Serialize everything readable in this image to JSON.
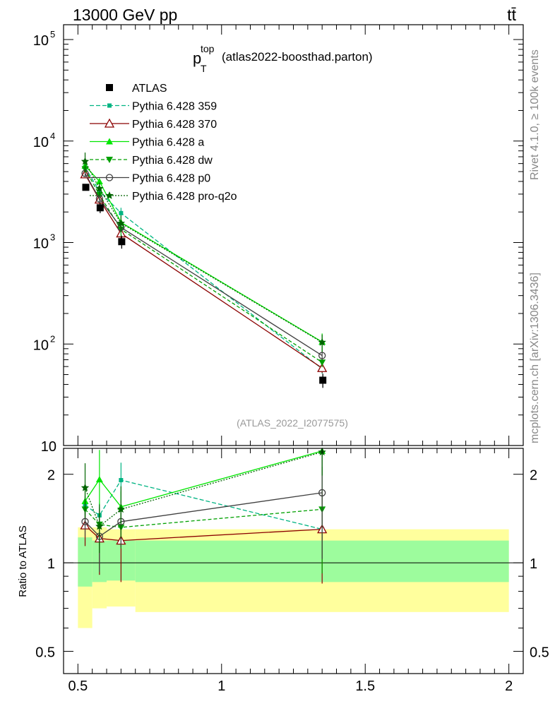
{
  "header": {
    "energy_label": "13000 GeV pp",
    "process_label": "tt̄",
    "analysis_id": "(ATLAS_2022_I2077575)",
    "side_label_top": "Rivet 4.1.0, ≥ 100k events",
    "side_label_bottom": "mcplots.cern.ch [arXiv:1306.3436]"
  },
  "title": {
    "main": "p",
    "sup": "top",
    "sub": "T",
    "suffix": "(atlas2022-boosthad.parton)"
  },
  "colors": {
    "ATLAS": "#000000",
    "p359": "#00b482",
    "p370": "#8b0000",
    "pa": "#00e600",
    "pdw": "#00a000",
    "pp0": "#404040",
    "pq2o": "#006400",
    "band_inner": "#9dfc9d",
    "band_outer": "#ffff9d"
  },
  "chart_data": [
    {
      "type": "line",
      "panel": "main",
      "xlim": [
        0.45,
        2.05
      ],
      "yscale": "log",
      "ylim": [
        10,
        140000
      ],
      "yticks": [
        {
          "value": 10,
          "base": "10",
          "exp": ""
        },
        {
          "value": 100,
          "base": "10",
          "exp": "2"
        },
        {
          "value": 1000,
          "base": "10",
          "exp": "3"
        },
        {
          "value": 10000,
          "base": "10",
          "exp": "4"
        },
        {
          "value": 100000,
          "base": "10",
          "exp": "5"
        }
      ],
      "x": [
        0.525,
        0.575,
        0.65,
        1.35
      ],
      "data": {
        "name": "ATLAS",
        "values": [
          3500,
          2200,
          1020,
          44
        ],
        "err_hi": [
          120,
          250,
          150,
          7
        ],
        "err_lo": [
          120,
          250,
          150,
          7
        ]
      },
      "series": [
        {
          "key": "p359",
          "name": "Pythia 6.428 359",
          "marker": "square-small",
          "dash": "6,3",
          "values": [
            5500,
            3200,
            1950,
            57
          ],
          "errs": [
            400,
            300,
            250,
            6
          ]
        },
        {
          "key": "p370",
          "name": "Pythia 6.428 370",
          "marker": "triangle-open",
          "dash": "",
          "values": [
            4700,
            2650,
            1230,
            58
          ],
          "errs": [
            300,
            250,
            150,
            6
          ]
        },
        {
          "key": "pa",
          "name": "Pythia 6.428 a",
          "marker": "triangle-up",
          "dash": "",
          "values": [
            5700,
            4000,
            1580,
            105
          ],
          "errs": [
            400,
            300,
            200,
            22
          ]
        },
        {
          "key": "pdw",
          "name": "Pythia 6.428 dw",
          "marker": "triangle-down",
          "dash": "5,3",
          "values": [
            5300,
            2950,
            1350,
            66
          ],
          "errs": [
            400,
            300,
            200,
            7
          ]
        },
        {
          "key": "pp0",
          "name": "Pythia 6.428 p0",
          "marker": "circle-open",
          "dash": "",
          "values": [
            4800,
            2700,
            1410,
            77
          ],
          "errs": [
            300,
            250,
            150,
            7
          ]
        },
        {
          "key": "pq2o",
          "name": "Pythia 6.428 pro-q2o",
          "marker": "star",
          "dash": "2,2",
          "values": [
            6300,
            3400,
            1550,
            104
          ],
          "errs": [
            1400,
            500,
            300,
            20
          ]
        }
      ]
    },
    {
      "type": "line",
      "panel": "ratio",
      "ylabel": "Ratio to ATLAS",
      "xlim": [
        0.45,
        2.05
      ],
      "yscale": "log",
      "ylim": [
        0.42,
        2.45
      ],
      "yticks": [
        {
          "value": 0.5,
          "label": "0.5"
        },
        {
          "value": 1,
          "label": "1"
        },
        {
          "value": 2,
          "label": "2"
        }
      ],
      "xticks": [
        {
          "value": 0.5,
          "label": "0.5"
        },
        {
          "value": 1,
          "label": "1"
        },
        {
          "value": 1.5,
          "label": "1.5"
        },
        {
          "value": 2,
          "label": "2"
        }
      ],
      "bands": [
        {
          "x0": 0.5,
          "x1": 0.55,
          "inner": [
            0.83,
            1.22
          ],
          "outer": [
            0.6,
            1.32
          ]
        },
        {
          "x0": 0.55,
          "x1": 0.6,
          "inner": [
            0.86,
            1.19
          ],
          "outer": [
            0.7,
            1.32
          ]
        },
        {
          "x0": 0.6,
          "x1": 0.7,
          "inner": [
            0.87,
            1.19
          ],
          "outer": [
            0.71,
            1.3
          ]
        },
        {
          "x0": 0.7,
          "x1": 2.0,
          "inner": [
            0.86,
            1.19
          ],
          "outer": [
            0.68,
            1.3
          ]
        }
      ],
      "x": [
        0.525,
        0.575,
        0.65,
        1.35
      ],
      "series": [
        {
          "key": "p359",
          "values": [
            1.57,
            1.45,
            1.91,
            1.3
          ],
          "errs": [
            0.12,
            0.15,
            0.28,
            0.1
          ]
        },
        {
          "key": "p370",
          "values": [
            1.34,
            1.21,
            1.19,
            1.3
          ],
          "errs": [
            0.2,
            0.3,
            0.33,
            0.45
          ]
        },
        {
          "key": "pa",
          "values": [
            1.62,
            1.92,
            1.55,
            2.4
          ],
          "errs": [
            0.15,
            0.5,
            0.2,
            0.1
          ]
        },
        {
          "key": "pdw",
          "values": [
            1.52,
            1.35,
            1.32,
            1.52
          ],
          "errs": [
            0.15,
            0.2,
            0.2,
            0.6
          ]
        },
        {
          "key": "pp0",
          "values": [
            1.38,
            1.23,
            1.38,
            1.73
          ],
          "errs": [
            0.15,
            0.3,
            0.25,
            0.7
          ]
        },
        {
          "key": "pq2o",
          "values": [
            1.8,
            1.33,
            1.52,
            2.38
          ],
          "errs": [
            0.38,
            0.25,
            0.3,
            0.4
          ]
        }
      ]
    }
  ]
}
